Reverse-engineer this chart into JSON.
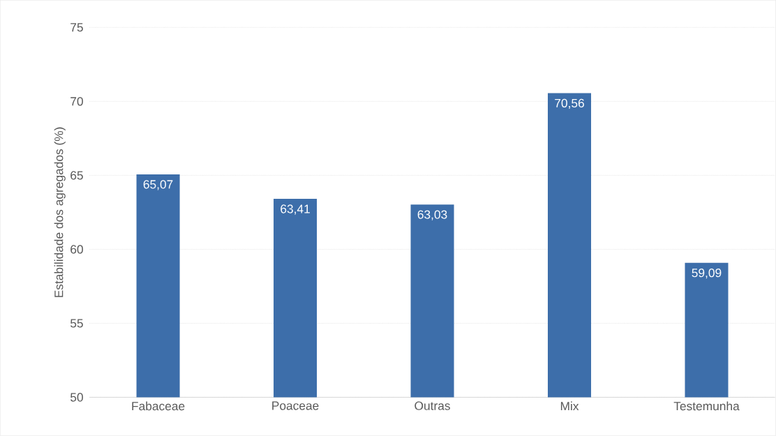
{
  "chart_data": {
    "type": "bar",
    "ylabel": "Estabilidade dos agregados (%)",
    "categories": [
      "Fabaceae",
      "Poaceae",
      "Outras",
      "Mix",
      "Testemunha"
    ],
    "values": [
      65.07,
      63.41,
      63.03,
      70.56,
      59.09
    ],
    "value_labels": [
      "65,07",
      "63,41",
      "63,03",
      "70,56",
      "59,09"
    ],
    "color": "#3d6eaa",
    "ylim": [
      50,
      75
    ],
    "yticks": [
      50,
      55,
      60,
      65,
      70,
      75
    ],
    "grid": "y"
  }
}
